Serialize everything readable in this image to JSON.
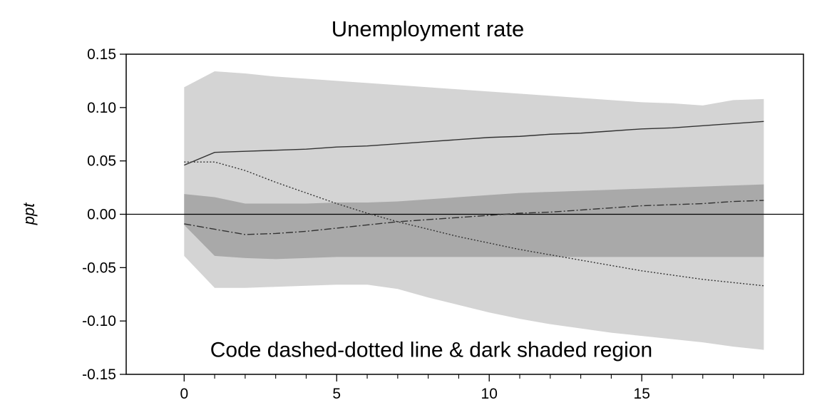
{
  "chart_data": {
    "type": "line",
    "title": "Unemployment rate",
    "xlabel": "",
    "ylabel": "ppt",
    "xlim": [
      -1.9,
      20.3
    ],
    "ylim": [
      -0.15,
      0.15
    ],
    "xticks": [
      0,
      5,
      10,
      15
    ],
    "xtick_labels": [
      "0",
      "5",
      "10",
      "15"
    ],
    "minor_xticks": [
      1,
      2,
      3,
      4,
      6,
      7,
      8,
      9,
      11,
      12,
      13,
      14,
      16,
      17,
      18,
      19
    ],
    "yticks": [
      0.15,
      0.1,
      0.05,
      0.0,
      -0.05,
      -0.1,
      -0.15
    ],
    "ytick_labels": [
      "0.15",
      "0.10",
      "0.05",
      "0.00",
      "-0.05",
      "-0.10",
      "-0.15"
    ],
    "x": [
      0,
      1,
      2,
      3,
      4,
      5,
      6,
      7,
      8,
      9,
      10,
      11,
      12,
      13,
      14,
      15,
      16,
      17,
      18,
      19
    ],
    "zero_line": 0,
    "bands": [
      {
        "shade": "light",
        "color": "#d4d4d4",
        "upper": [
          0.119,
          0.134,
          0.132,
          0.129,
          0.127,
          0.125,
          0.123,
          0.121,
          0.119,
          0.117,
          0.115,
          0.113,
          0.111,
          0.109,
          0.107,
          0.105,
          0.104,
          0.102,
          0.107,
          0.108
        ],
        "lower": [
          -0.039,
          -0.069,
          -0.069,
          -0.068,
          -0.067,
          -0.066,
          -0.066,
          -0.07,
          -0.078,
          -0.085,
          -0.092,
          -0.098,
          -0.103,
          -0.107,
          -0.111,
          -0.114,
          -0.117,
          -0.12,
          -0.124,
          -0.127
        ]
      },
      {
        "shade": "dark",
        "color": "#a9a9a9",
        "upper": [
          0.019,
          0.016,
          0.01,
          0.01,
          0.01,
          0.011,
          0.011,
          0.012,
          0.014,
          0.016,
          0.018,
          0.02,
          0.021,
          0.022,
          0.023,
          0.024,
          0.025,
          0.026,
          0.027,
          0.028
        ],
        "lower": [
          -0.01,
          -0.039,
          -0.041,
          -0.042,
          -0.041,
          -0.04,
          -0.04,
          -0.04,
          -0.04,
          -0.04,
          -0.04,
          -0.04,
          -0.04,
          -0.04,
          -0.04,
          -0.04,
          -0.04,
          -0.04,
          -0.04,
          -0.04
        ]
      }
    ],
    "series": [
      {
        "style": "solid",
        "color": "#333333",
        "values": [
          0.046,
          0.058,
          0.059,
          0.06,
          0.061,
          0.063,
          0.064,
          0.066,
          0.068,
          0.07,
          0.072,
          0.073,
          0.075,
          0.076,
          0.078,
          0.08,
          0.081,
          0.083,
          0.085,
          0.087
        ]
      },
      {
        "style": "dotted",
        "color": "#333333",
        "values": [
          0.049,
          0.049,
          0.041,
          0.03,
          0.02,
          0.01,
          0.001,
          -0.007,
          -0.014,
          -0.021,
          -0.027,
          -0.033,
          -0.038,
          -0.043,
          -0.048,
          -0.053,
          -0.057,
          -0.061,
          -0.064,
          -0.067
        ]
      },
      {
        "style": "dash-dot",
        "color": "#333333",
        "values": [
          -0.009,
          -0.014,
          -0.019,
          -0.018,
          -0.016,
          -0.013,
          -0.01,
          -0.007,
          -0.005,
          -0.003,
          -0.001,
          0.001,
          0.002,
          0.004,
          0.006,
          0.008,
          0.009,
          0.01,
          0.012,
          0.013
        ]
      }
    ],
    "annotations": [
      {
        "text": "Code dashed-dotted line & dark shaded region",
        "x": 8.1,
        "y": -0.1335
      }
    ]
  }
}
